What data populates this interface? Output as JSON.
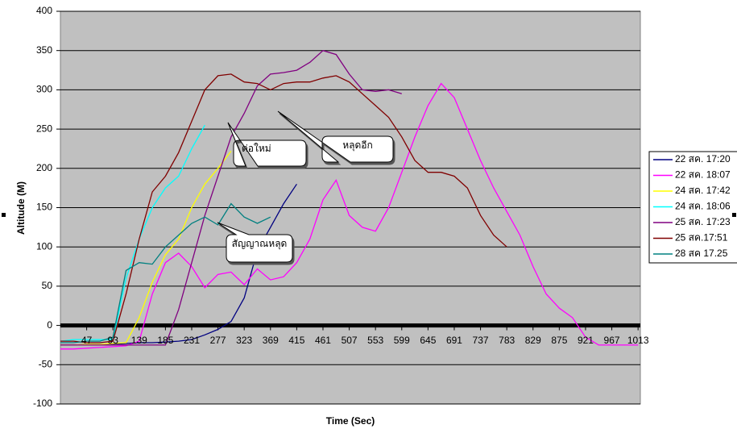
{
  "chart_data": {
    "type": "line",
    "x_label": "Time (Sec)",
    "y_label": "Altitude (M)",
    "xlim": [
      1,
      1017
    ],
    "ylim": [
      -100,
      400
    ],
    "xticks": [
      47,
      93,
      139,
      185,
      231,
      277,
      323,
      369,
      415,
      461,
      507,
      553,
      599,
      645,
      691,
      737,
      783,
      829,
      875,
      921,
      967,
      1013
    ],
    "yticks": [
      -100,
      -50,
      0,
      50,
      100,
      150,
      200,
      250,
      300,
      350,
      400
    ],
    "grid": true,
    "legend": "right",
    "x": [
      1,
      24,
      47,
      70,
      93,
      116,
      139,
      162,
      185,
      208,
      231,
      254,
      277,
      300,
      323,
      346,
      369,
      392,
      415,
      438,
      461,
      484,
      507,
      530,
      553,
      576,
      599,
      622,
      645,
      668,
      691,
      714,
      737,
      760,
      783,
      806,
      829,
      852,
      875,
      898,
      921,
      944,
      967,
      990,
      1013
    ],
    "series": [
      {
        "name": "22 สค. 17:20",
        "color": "#000080",
        "values": [
          -25,
          -25,
          -24,
          -24,
          -24,
          -23,
          -22,
          -22,
          -21,
          -20,
          -18,
          -12,
          -5,
          5,
          35,
          95,
          125,
          155,
          180,
          null,
          null,
          null,
          null,
          null,
          null,
          null,
          null,
          null,
          null,
          null,
          null,
          null,
          null,
          null,
          null,
          null,
          null,
          null,
          null,
          null,
          null,
          null,
          null,
          null,
          null
        ]
      },
      {
        "name": "22 สค. 18:07",
        "color": "#ff00ff",
        "values": [
          -30,
          -30,
          -29,
          -28,
          -27,
          -26,
          -20,
          40,
          80,
          92,
          75,
          48,
          65,
          68,
          52,
          72,
          58,
          62,
          80,
          110,
          160,
          185,
          140,
          125,
          120,
          150,
          195,
          240,
          280,
          308,
          290,
          250,
          210,
          175,
          145,
          115,
          75,
          40,
          22,
          10,
          -15,
          -25,
          -25,
          -25,
          -25
        ]
      },
      {
        "name": "24 สค. 17:42",
        "color": "#ffff00",
        "values": [
          -25,
          -25,
          -24,
          -24,
          -23,
          -22,
          10,
          55,
          90,
          110,
          150,
          180,
          200,
          222,
          null,
          null,
          null,
          null,
          null,
          null,
          null,
          null,
          null,
          null,
          null,
          null,
          null,
          null,
          null,
          null,
          null,
          null,
          null,
          null,
          null,
          null,
          null,
          null,
          null,
          null,
          null,
          null,
          null,
          null,
          null
        ]
      },
      {
        "name": "24 สค. 18:06",
        "color": "#00ffff",
        "values": [
          -20,
          -18,
          -18,
          -18,
          -18,
          60,
          110,
          150,
          175,
          190,
          225,
          255,
          null,
          null,
          null,
          null,
          null,
          null,
          null,
          null,
          null,
          null,
          null,
          null,
          null,
          null,
          null,
          null,
          null,
          null,
          null,
          null,
          null,
          null,
          null,
          null,
          null,
          null,
          null,
          null,
          null,
          null,
          null,
          null,
          null
        ]
      },
      {
        "name": "25 สค. 17:23",
        "color": "#800080",
        "values": [
          -25,
          -25,
          -25,
          -25,
          -25,
          -25,
          -25,
          -25,
          -25,
          20,
          80,
          140,
          190,
          240,
          270,
          305,
          320,
          322,
          325,
          335,
          350,
          345,
          320,
          300,
          298,
          300,
          295,
          null,
          null,
          null,
          null,
          null,
          null,
          null,
          null,
          null,
          null,
          null,
          null,
          null,
          null,
          null,
          null,
          null,
          null
        ]
      },
      {
        "name": "25 สค.17:51",
        "color": "#800000",
        "values": [
          -20,
          -20,
          -22,
          -22,
          -20,
          40,
          110,
          170,
          190,
          220,
          260,
          300,
          318,
          320,
          310,
          308,
          300,
          308,
          310,
          310,
          315,
          318,
          310,
          295,
          280,
          265,
          240,
          210,
          195,
          195,
          190,
          175,
          140,
          115,
          100,
          null,
          null,
          null,
          null,
          null,
          null,
          null,
          null,
          null,
          null
        ]
      },
      {
        "name": "28 สค 17.25",
        "color": "#008080",
        "values": [
          -22,
          -22,
          -20,
          -20,
          -15,
          70,
          80,
          78,
          100,
          115,
          130,
          138,
          128,
          155,
          138,
          130,
          138,
          null,
          null,
          null,
          null,
          null,
          null,
          null,
          null,
          null,
          null,
          null,
          null,
          null,
          null,
          null,
          null,
          null,
          null,
          null,
          null,
          null,
          null,
          null,
          null,
          null,
          null,
          null,
          null
        ]
      }
    ],
    "annotations": [
      "ต่อใหม่",
      "หลุดอีก",
      "สัญญาณหลุด"
    ]
  }
}
